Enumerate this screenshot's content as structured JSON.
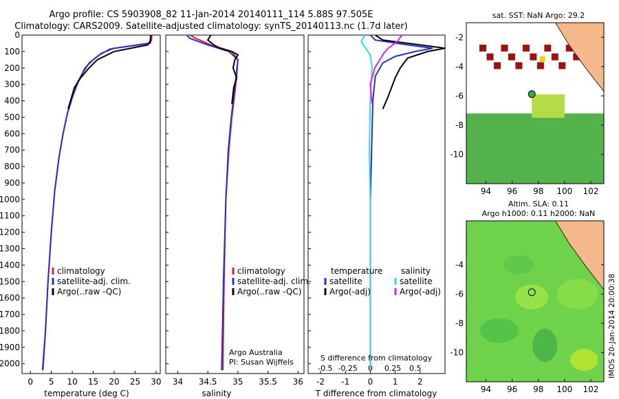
{
  "header": {
    "line1": "Argo profile: CS 5903908_82 11-Jan-2014 20140111_114 5.88S 97.505E",
    "line2": "Climatology: CARS2009. Satellite-adjusted climatology: synTS_20140113.nc (1.7d later)"
  },
  "colors": {
    "clim": "#e02020",
    "sat": "#2a2ae0",
    "argo": "#000000",
    "sat_s": "#30e0e0",
    "argo_s": "#e020e0"
  },
  "chart_data": [
    {
      "type": "line",
      "id": "temperature",
      "xlabel": "temperature (deg C)",
      "ylabel": "",
      "xlim": [
        -2,
        31
      ],
      "ylim": [
        2060,
        0
      ],
      "xticks": [
        0,
        5,
        10,
        15,
        20,
        25,
        30
      ],
      "yticks": [
        0,
        100,
        200,
        300,
        400,
        500,
        600,
        700,
        800,
        900,
        1000,
        1100,
        1200,
        1300,
        1400,
        1500,
        1600,
        1700,
        1800,
        1900,
        2000
      ],
      "legend": {
        "position": "lower-middle",
        "items": [
          "climatology",
          "satellite-adj. clim.",
          "Argo(..raw -QC)"
        ]
      },
      "series": [
        {
          "name": "climatology",
          "color_key": "clim",
          "points": [
            [
              29.0,
              0
            ],
            [
              28.9,
              30
            ],
            [
              28.6,
              50
            ],
            [
              26,
              60
            ],
            [
              20,
              80
            ],
            [
              17,
              110
            ],
            [
              15,
              150
            ],
            [
              13,
              200
            ],
            [
              11.5,
              280
            ],
            [
              10,
              380
            ],
            [
              8.8,
              480
            ],
            [
              7.8,
              600
            ],
            [
              6.8,
              750
            ],
            [
              5.8,
              950
            ],
            [
              5.0,
              1200
            ],
            [
              4.2,
              1500
            ],
            [
              3.6,
              1800
            ],
            [
              3.0,
              2040
            ]
          ]
        },
        {
          "name": "satellite-adj. clim.",
          "color_key": "sat",
          "points": [
            [
              28.8,
              0
            ],
            [
              28.7,
              30
            ],
            [
              28.2,
              50
            ],
            [
              25,
              62
            ],
            [
              19,
              85
            ],
            [
              16.5,
              120
            ],
            [
              14,
              170
            ],
            [
              12.5,
              230
            ],
            [
              11,
              300
            ],
            [
              10,
              380
            ],
            [
              8.8,
              480
            ],
            [
              7.8,
              600
            ],
            [
              6.8,
              750
            ],
            [
              5.8,
              950
            ],
            [
              5.0,
              1200
            ],
            [
              4.2,
              1500
            ],
            [
              3.6,
              1800
            ],
            [
              2.9,
              2040
            ]
          ]
        },
        {
          "name": "Argo(..raw -QC)",
          "color_key": "argo",
          "points": [
            [
              28.7,
              0
            ],
            [
              28.6,
              40
            ],
            [
              28.0,
              60
            ],
            [
              25,
              75
            ],
            [
              20,
              100
            ],
            [
              16,
              150
            ],
            [
              14,
              200
            ],
            [
              12,
              260
            ],
            [
              10.5,
              320
            ],
            [
              9.8,
              380
            ],
            [
              9.0,
              450
            ]
          ]
        }
      ]
    },
    {
      "type": "line",
      "id": "salinity",
      "xlabel": "salinity",
      "xlim": [
        33.8,
        36.1
      ],
      "ylim": [
        2060,
        0
      ],
      "xticks": [
        34,
        34.5,
        35,
        35.5,
        36
      ],
      "xticklabels": [
        "34",
        "34.5",
        "35",
        "35.5",
        "36"
      ],
      "legend": {
        "position": "lower-middle",
        "items": [
          "climatology",
          "satellite-adj. clim.",
          "Argo(..raw -QC)"
        ]
      },
      "annotation": [
        "Argo Australia",
        "PI: Susan Wijffels"
      ],
      "series": [
        {
          "name": "climatology",
          "color_key": "clim",
          "points": [
            [
              34.2,
              0
            ],
            [
              34.3,
              20
            ],
            [
              34.55,
              60
            ],
            [
              34.9,
              100
            ],
            [
              35.0,
              150
            ],
            [
              34.98,
              250
            ],
            [
              34.95,
              350
            ],
            [
              34.9,
              500
            ],
            [
              34.85,
              700
            ],
            [
              34.8,
              1000
            ],
            [
              34.77,
              1500
            ],
            [
              34.75,
              2040
            ]
          ]
        },
        {
          "name": "satellite-adj. clim.",
          "color_key": "sat",
          "points": [
            [
              34.15,
              0
            ],
            [
              34.2,
              20
            ],
            [
              34.5,
              60
            ],
            [
              34.85,
              100
            ],
            [
              35.0,
              150
            ],
            [
              34.97,
              250
            ],
            [
              34.94,
              350
            ],
            [
              34.89,
              500
            ],
            [
              34.84,
              700
            ],
            [
              34.8,
              1000
            ],
            [
              34.76,
              1500
            ],
            [
              34.73,
              2040
            ]
          ]
        },
        {
          "name": "Argo(..raw -QC)",
          "color_key": "argo",
          "points": [
            [
              34.55,
              0
            ],
            [
              34.5,
              30
            ],
            [
              34.6,
              60
            ],
            [
              34.7,
              80
            ],
            [
              34.9,
              100
            ],
            [
              35.0,
              120
            ],
            [
              34.95,
              150
            ],
            [
              34.92,
              200
            ],
            [
              34.98,
              260
            ],
            [
              34.93,
              320
            ],
            [
              34.9,
              420
            ]
          ]
        }
      ]
    },
    {
      "type": "line",
      "id": "difference",
      "xlabel": "T difference from climatology",
      "xlabel2": "S difference from climatology",
      "xlim": [
        -2.5,
        3
      ],
      "ylim": [
        2060,
        0
      ],
      "xticks": [
        -2,
        -1,
        0,
        1,
        2
      ],
      "xticks2": [
        -0.5,
        -0.25,
        0,
        0.25,
        0.5
      ],
      "xticklabels2": [
        "-0.5",
        "-0.25",
        "0",
        "0.25",
        "0.5"
      ],
      "legend": {
        "position": "lower-middle",
        "temp_title": "temperature",
        "sal_title": "salinity",
        "items": [
          "satellite",
          "Argo(-adj)",
          "satellite",
          "Argo(-adj)"
        ]
      },
      "series": [
        {
          "name": "T satellite",
          "color_key": "sat",
          "points": [
            [
              0,
              0
            ],
            [
              0.2,
              30
            ],
            [
              1.5,
              60
            ],
            [
              2.5,
              80
            ],
            [
              1.8,
              100
            ],
            [
              1.0,
              130
            ],
            [
              0.5,
              170
            ],
            [
              0.2,
              250
            ],
            [
              0.1,
              400
            ],
            [
              0.05,
              700
            ],
            [
              0,
              1000
            ],
            [
              0,
              1500
            ],
            [
              0,
              2040
            ]
          ]
        },
        {
          "name": "T Argo(-adj)",
          "color_key": "argo",
          "points": [
            [
              0.2,
              0
            ],
            [
              0.5,
              30
            ],
            [
              2.0,
              60
            ],
            [
              3.0,
              80
            ],
            [
              2.3,
              100
            ],
            [
              1.5,
              140
            ],
            [
              1.2,
              200
            ],
            [
              1.0,
              260
            ],
            [
              0.7,
              380
            ],
            [
              0.5,
              450
            ]
          ]
        },
        {
          "name": "S satellite",
          "color_key": "sat_s",
          "points": [
            [
              -0.06,
              0
            ],
            [
              -0.1,
              40
            ],
            [
              -0.05,
              80
            ],
            [
              0,
              120
            ],
            [
              0.02,
              200
            ],
            [
              0.0,
              400
            ],
            [
              -0.01,
              700
            ],
            [
              0,
              1000
            ],
            [
              0,
              1500
            ],
            [
              0,
              2040
            ]
          ]
        },
        {
          "name": "S Argo(-adj)",
          "color_key": "argo_s",
          "points": [
            [
              0.35,
              0
            ],
            [
              0.3,
              40
            ],
            [
              0.2,
              80
            ],
            [
              0.15,
              110
            ],
            [
              0.05,
              200
            ],
            [
              0.0,
              300
            ],
            [
              0.02,
              420
            ]
          ]
        }
      ]
    }
  ],
  "maps": {
    "sst_title": "sat. SST: NaN Argo: 29.2",
    "sla_title1": "Altim. SLA: 0.11",
    "sla_title2": "Argo h1000: 0.11 h2000: NaN",
    "xticks": [
      94,
      96,
      98,
      100,
      102
    ],
    "yticks": [
      -4,
      -6,
      -8,
      -10
    ],
    "xlim": [
      92.5,
      103
    ],
    "ylim": [
      -12,
      -1
    ],
    "argo_lon": 97.5,
    "argo_lat": -5.88,
    "sst_ytick_m2": "-2"
  },
  "footer": {
    "credit": "IMOS 20-Jan-2014 20:00:38"
  }
}
